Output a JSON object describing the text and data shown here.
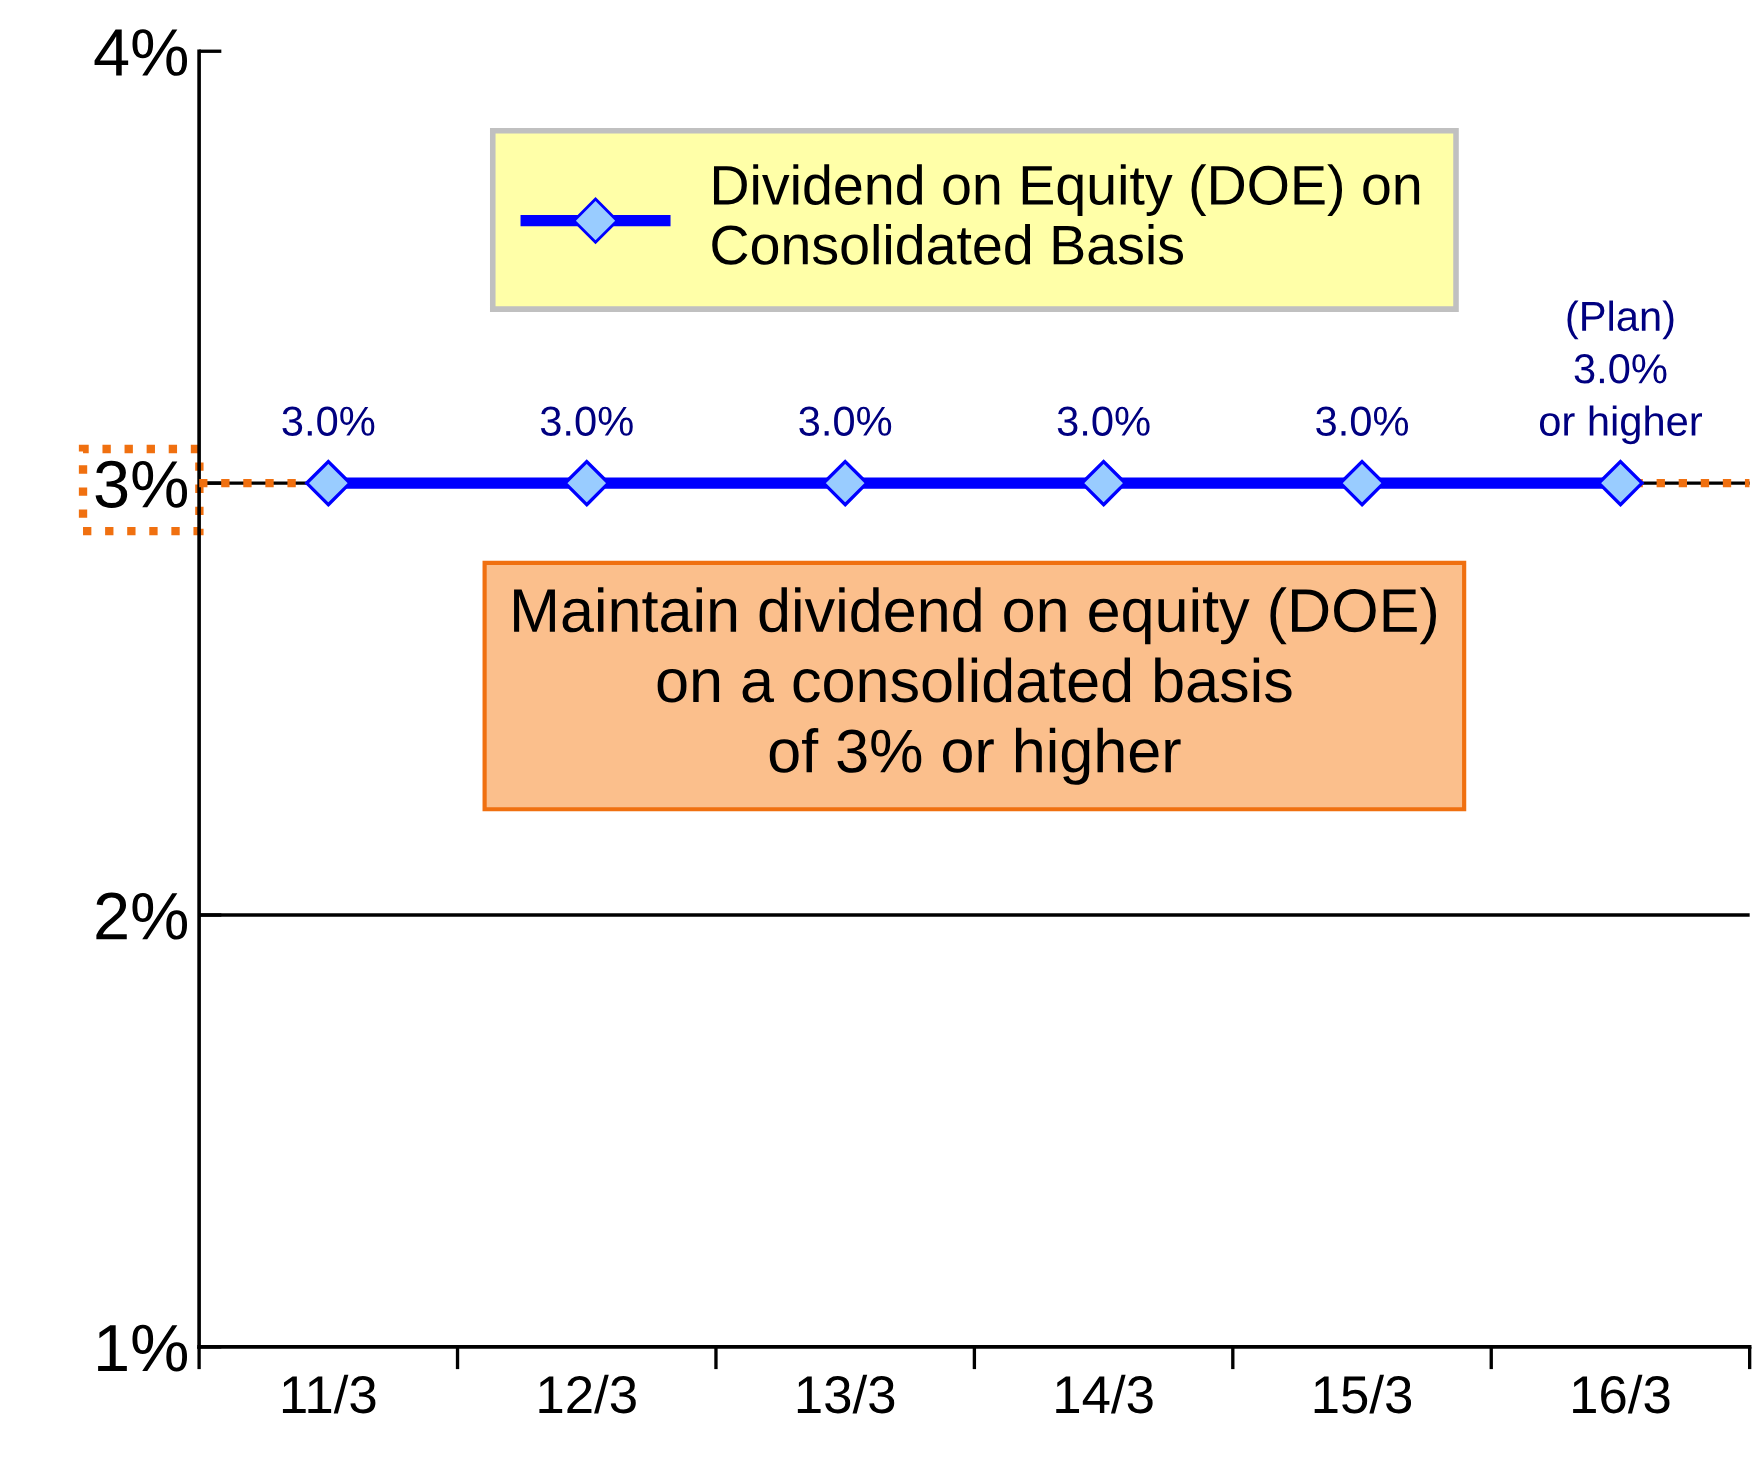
{
  "chart_data": {
    "type": "line",
    "categories": [
      "11/3",
      "12/3",
      "13/3",
      "14/3",
      "15/3",
      "16/3"
    ],
    "series": [
      {
        "name": "Dividend on Equity (DOE) on\nConsolidated Basis",
        "color": "#0000ff",
        "values": [
          3.0,
          3.0,
          3.0,
          3.0,
          3.0,
          3.0
        ],
        "value_labels": [
          "3.0%",
          "3.0%",
          "3.0%",
          "3.0%",
          "3.0%",
          "(Plan)\n3.0%\nor higher"
        ]
      }
    ],
    "ylim": [
      1,
      4
    ],
    "yticks": [
      {
        "value": 1,
        "label": "1%"
      },
      {
        "value": 2,
        "label": "2%"
      },
      {
        "value": 3,
        "label": "3%"
      },
      {
        "value": 4,
        "label": "4%"
      }
    ],
    "grid": "y",
    "legend": "top",
    "marker": "diamond",
    "line_style": "solid",
    "ref_lines": [
      {
        "axis": "y",
        "value": 3,
        "label": null,
        "color": "#f07010",
        "line_style": "dotted"
      }
    ],
    "annotations": [
      "Maintain dividend on equity (DOE)\non a consolidated basis\nof 3% or higher"
    ]
  }
}
